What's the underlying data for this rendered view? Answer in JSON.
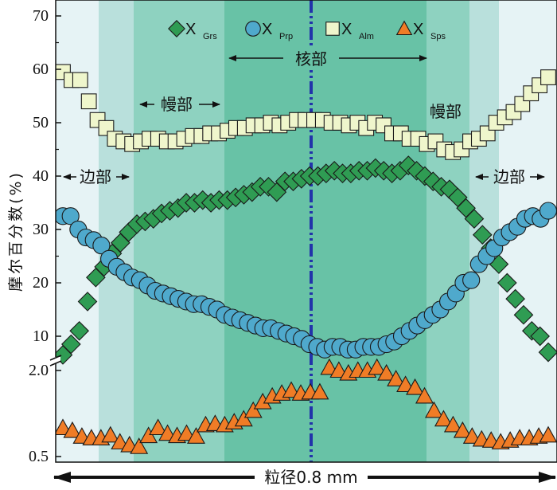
{
  "chart_data": {
    "type": "scatter",
    "ylabel": "摩尔百分数(%)",
    "xlabel": "粒径0.8 mm",
    "y_ticks_upper": [
      "10",
      "20",
      "30",
      "40",
      "50",
      "60",
      "70"
    ],
    "y_ticks_lower": [
      "0.5",
      "2.0"
    ],
    "y_axis_break": true,
    "upper_ylim": [
      5,
      72
    ],
    "lower_ylim": [
      0.5,
      2.0
    ],
    "zones": [
      {
        "label": "边部",
        "side": "left"
      },
      {
        "label": "幔部",
        "side": "left"
      },
      {
        "label": "核部",
        "side": "center"
      },
      {
        "label": "幔部",
        "side": "right"
      },
      {
        "label": "边部",
        "side": "right"
      }
    ],
    "zone_colors": [
      "#e6f3f5",
      "#b9e0dc",
      "#8ed2c0",
      "#68c2a6",
      "#8ed2c0",
      "#b9e0dc",
      "#e6f3f5"
    ],
    "center_line_color": "#2233aa",
    "legend_position": "top",
    "series": [
      {
        "name": "X",
        "subscript": "Grs",
        "marker": "diamond",
        "color": "#2f9c53",
        "values": [
          6.5,
          8.5,
          11,
          16.5,
          21,
          23,
          25.5,
          27.5,
          29.5,
          31,
          31.5,
          32,
          33,
          33.5,
          34,
          35,
          35,
          35.5,
          35,
          35.5,
          35.5,
          36,
          36.5,
          37,
          38,
          38,
          37,
          39,
          39,
          39.5,
          40,
          40,
          40.5,
          41,
          40.5,
          40.5,
          41,
          41,
          41.5,
          41,
          40.5,
          41,
          42,
          41,
          40,
          39,
          38,
          37.5,
          36,
          34,
          32,
          29,
          26.5,
          23.5,
          20,
          17,
          14,
          11,
          10,
          7
        ]
      },
      {
        "name": "X",
        "subscript": "Prp",
        "marker": "circle",
        "color": "#4fa9cc",
        "values": [
          32.5,
          32.5,
          30,
          28.5,
          28,
          27,
          24.5,
          23,
          22,
          21,
          20.5,
          19.5,
          18.5,
          18,
          17.5,
          17,
          16.5,
          16,
          16,
          15.5,
          15,
          14,
          13.5,
          13,
          12.5,
          12,
          11.5,
          11.5,
          11,
          10.5,
          10,
          9.5,
          8.5,
          8,
          7.5,
          8,
          8,
          7.5,
          7.5,
          8,
          8,
          8,
          8.5,
          9,
          10,
          11,
          12,
          13,
          14,
          15,
          16.5,
          18,
          20,
          20.5,
          23.5,
          25,
          26.5,
          28.5,
          29.5,
          30.5,
          32,
          32.5,
          32,
          33.5
        ]
      },
      {
        "name": "X",
        "subscript": "Alm",
        "marker": "square",
        "color": "#eff6cc",
        "values": [
          59.5,
          58,
          58,
          54,
          50.5,
          49,
          47,
          46.5,
          46,
          46.5,
          47,
          47,
          46.5,
          46.5,
          47,
          47.5,
          47.5,
          48,
          48,
          48.5,
          49,
          49,
          49.5,
          49.5,
          50,
          49.5,
          50,
          50.5,
          50.5,
          50.5,
          50.5,
          50,
          50,
          49.5,
          50,
          49,
          50,
          49.5,
          48,
          48,
          47,
          47,
          46,
          46.5,
          45,
          44.5,
          45,
          46.5,
          47,
          48,
          50,
          51,
          52,
          53.5,
          55.5,
          57,
          58.5
        ]
      },
      {
        "name": "X",
        "subscript": "Sps",
        "marker": "triangle",
        "color": "#f07c26",
        "values": [
          1.0,
          0.95,
          0.85,
          0.82,
          0.82,
          0.87,
          0.75,
          0.7,
          0.67,
          0.86,
          1.0,
          0.9,
          0.86,
          0.9,
          0.85,
          1.05,
          1.07,
          1.05,
          1.1,
          1.15,
          1.3,
          1.45,
          1.55,
          1.6,
          1.65,
          1.6,
          1.62,
          1.62,
          2.05,
          2.0,
          1.95,
          2.0,
          2.0,
          2.05,
          1.95,
          1.85,
          1.75,
          1.7,
          1.55,
          1.3,
          1.15,
          1.05,
          0.95,
          0.85,
          0.8,
          0.78,
          0.75,
          0.78,
          0.82,
          0.82,
          0.85,
          0.87
        ]
      }
    ]
  }
}
